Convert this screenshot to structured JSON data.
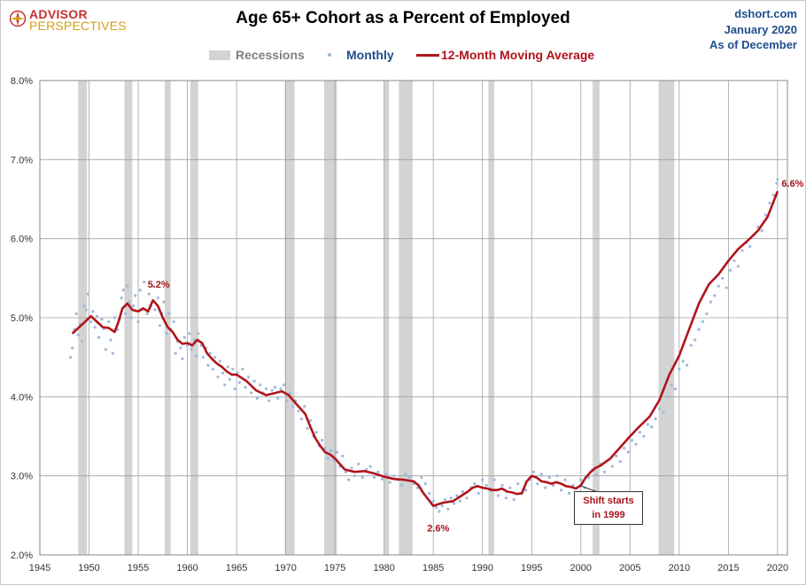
{
  "header": {
    "logo_line1": "ADVISOR",
    "logo_line2": "PERSPECTIVES",
    "title": "Age 65+ Cohort as a Percent of Employed",
    "source_line1": "dshort.com",
    "source_line2": "January 2020",
    "source_line3": "As of December"
  },
  "legend": {
    "recessions": "Recessions",
    "monthly": "Monthly",
    "moving_average": "12-Month Moving Average"
  },
  "colors": {
    "recession": "#d3d3d3",
    "monthly": "#9fb9dc",
    "moving_average": "#b0141c",
    "grid": "#a0a0a0",
    "annotation": "#a6141a",
    "legend_text": "#1f4e8c",
    "legend_recession_text": "#7f7f7f"
  },
  "chart_data": {
    "type": "line",
    "title": "Age 65+ Cohort as a Percent of Employed",
    "xlim": [
      1945,
      2021
    ],
    "ylim": [
      2.0,
      8.0
    ],
    "x_ticks": [
      1945,
      1950,
      1955,
      1960,
      1965,
      1970,
      1975,
      1980,
      1985,
      1990,
      1995,
      2000,
      2005,
      2010,
      2015,
      2020
    ],
    "y_ticks": [
      {
        "v": 2.0,
        "label": "2.0%"
      },
      {
        "v": 3.0,
        "label": "3.0%"
      },
      {
        "v": 4.0,
        "label": "4.0%"
      },
      {
        "v": 5.0,
        "label": "5.0%"
      },
      {
        "v": 6.0,
        "label": "6.0%"
      },
      {
        "v": 7.0,
        "label": "7.0%"
      },
      {
        "v": 8.0,
        "label": "8.0%"
      }
    ],
    "grid": true,
    "legend_position": "top",
    "recessions": [
      [
        1948.9,
        1949.8
      ],
      [
        1953.6,
        1954.4
      ],
      [
        1957.7,
        1958.3
      ],
      [
        1960.3,
        1961.1
      ],
      [
        1969.9,
        1970.9
      ],
      [
        1973.9,
        1975.2
      ],
      [
        1980.0,
        1980.5
      ],
      [
        1981.5,
        1982.9
      ],
      [
        1990.6,
        1991.2
      ],
      [
        2001.2,
        2001.9
      ],
      [
        2007.9,
        2009.5
      ]
    ],
    "series": [
      {
        "name": "12-Month Moving Average",
        "x": [
          1948.3,
          1949.0,
          1949.6,
          1950.2,
          1950.8,
          1951.4,
          1952.0,
          1952.6,
          1953.0,
          1953.4,
          1953.9,
          1954.4,
          1955.0,
          1955.5,
          1956.0,
          1956.5,
          1957.0,
          1957.5,
          1958.0,
          1958.5,
          1959.0,
          1959.5,
          1960.0,
          1960.5,
          1961.0,
          1961.5,
          1962.0,
          1962.5,
          1963.0,
          1963.5,
          1964.0,
          1964.5,
          1965.0,
          1966.0,
          1967.0,
          1968.0,
          1969.0,
          1969.6,
          1970.3,
          1971.0,
          1971.5,
          1972.0,
          1972.5,
          1973.0,
          1973.5,
          1974.0,
          1974.5,
          1975.0,
          1976.0,
          1977.0,
          1978.0,
          1979.0,
          1980.0,
          1981.0,
          1982.0,
          1983.0,
          1983.5,
          1984.0,
          1984.5,
          1985.0,
          1985.5,
          1986.0,
          1986.5,
          1987.0,
          1987.5,
          1988.0,
          1988.5,
          1989.0,
          1989.5,
          1990.0,
          1990.5,
          1991.0,
          1991.5,
          1992.0,
          1992.5,
          1993.0,
          1993.5,
          1994.0,
          1994.5,
          1995.0,
          1995.5,
          1996.0,
          1996.5,
          1997.0,
          1997.5,
          1998.0,
          1998.5,
          1999.0,
          1999.5,
          2000.0,
          2000.5,
          2001.0,
          2001.5,
          2002.0,
          2003.0,
          2004.0,
          2005.0,
          2006.0,
          2007.0,
          2008.0,
          2009.0,
          2010.0,
          2011.0,
          2012.0,
          2013.0,
          2014.0,
          2015.0,
          2016.0,
          2017.0,
          2018.0,
          2019.0,
          2020.0
        ],
        "values": [
          4.8,
          4.88,
          4.95,
          5.02,
          4.95,
          4.88,
          4.87,
          4.82,
          4.95,
          5.12,
          5.18,
          5.1,
          5.08,
          5.12,
          5.08,
          5.22,
          5.15,
          5.0,
          4.88,
          4.82,
          4.72,
          4.67,
          4.68,
          4.65,
          4.72,
          4.68,
          4.55,
          4.48,
          4.42,
          4.38,
          4.32,
          4.28,
          4.28,
          4.2,
          4.08,
          4.02,
          4.05,
          4.07,
          4.02,
          3.92,
          3.85,
          3.78,
          3.62,
          3.48,
          3.38,
          3.3,
          3.27,
          3.22,
          3.08,
          3.05,
          3.06,
          3.03,
          2.99,
          2.96,
          2.95,
          2.93,
          2.88,
          2.78,
          2.7,
          2.62,
          2.64,
          2.66,
          2.67,
          2.68,
          2.72,
          2.76,
          2.8,
          2.85,
          2.87,
          2.85,
          2.84,
          2.82,
          2.82,
          2.84,
          2.8,
          2.79,
          2.77,
          2.78,
          2.93,
          3.0,
          2.98,
          2.93,
          2.92,
          2.9,
          2.92,
          2.9,
          2.87,
          2.86,
          2.84,
          2.88,
          2.98,
          3.05,
          3.1,
          3.13,
          3.22,
          3.36,
          3.5,
          3.63,
          3.75,
          3.96,
          4.28,
          4.52,
          4.85,
          5.18,
          5.42,
          5.55,
          5.72,
          5.87,
          5.98,
          6.1,
          6.28,
          6.6
        ]
      },
      {
        "name": "Monthly",
        "x": [
          1948.1,
          1948.3,
          1948.5,
          1948.7,
          1948.9,
          1949.1,
          1949.3,
          1949.5,
          1949.7,
          1949.9,
          1950.2,
          1950.4,
          1950.6,
          1950.8,
          1951.0,
          1951.3,
          1951.5,
          1951.7,
          1952.0,
          1952.2,
          1952.4,
          1952.6,
          1952.9,
          1953.1,
          1953.3,
          1953.5,
          1953.7,
          1953.9,
          1954.1,
          1954.3,
          1954.5,
          1954.7,
          1955.0,
          1955.2,
          1955.4,
          1955.6,
          1955.9,
          1956.1,
          1956.3,
          1956.5,
          1956.7,
          1957.0,
          1957.2,
          1957.4,
          1957.6,
          1957.9,
          1958.1,
          1958.3,
          1958.6,
          1958.8,
          1959.0,
          1959.3,
          1959.5,
          1959.7,
          1960.0,
          1960.2,
          1960.4,
          1960.7,
          1960.9,
          1961.1,
          1961.4,
          1961.6,
          1961.9,
          1962.1,
          1962.3,
          1962.6,
          1962.8,
          1963.1,
          1963.3,
          1963.6,
          1963.8,
          1964.1,
          1964.3,
          1964.6,
          1964.8,
          1965.1,
          1965.3,
          1965.6,
          1965.9,
          1966.2,
          1966.5,
          1966.8,
          1967.1,
          1967.4,
          1967.7,
          1968.0,
          1968.3,
          1968.6,
          1968.9,
          1969.2,
          1969.5,
          1969.8,
          1970.1,
          1970.4,
          1970.7,
          1971.0,
          1971.3,
          1971.6,
          1971.9,
          1972.2,
          1972.5,
          1972.8,
          1973.1,
          1973.4,
          1973.7,
          1974.0,
          1974.3,
          1974.6,
          1974.9,
          1975.2,
          1975.5,
          1975.8,
          1976.1,
          1976.4,
          1976.7,
          1977.0,
          1977.4,
          1977.8,
          1978.2,
          1978.6,
          1979.0,
          1979.4,
          1979.8,
          1980.2,
          1980.6,
          1981.0,
          1981.4,
          1981.8,
          1982.2,
          1982.6,
          1983.0,
          1983.4,
          1983.8,
          1984.2,
          1984.6,
          1985.0,
          1985.3,
          1985.6,
          1985.9,
          1986.2,
          1986.5,
          1986.8,
          1987.1,
          1987.4,
          1987.7,
          1988.0,
          1988.4,
          1988.8,
          1989.2,
          1989.6,
          1990.0,
          1990.4,
          1990.8,
          1991.2,
          1991.6,
          1992.0,
          1992.4,
          1992.8,
          1993.2,
          1993.6,
          1994.0,
          1994.4,
          1994.8,
          1995.2,
          1995.6,
          1996.0,
          1996.4,
          1996.8,
          1997.2,
          1997.6,
          1998.0,
          1998.4,
          1998.8,
          1999.2,
          1999.6,
          2000.0,
          2000.4,
          2000.8,
          2001.2,
          2001.6,
          2002.0,
          2002.4,
          2002.8,
          2003.2,
          2003.6,
          2004.0,
          2004.4,
          2004.8,
          2005.2,
          2005.6,
          2006.0,
          2006.4,
          2006.8,
          2007.2,
          2007.6,
          2008.0,
          2008.4,
          2008.8,
          2009.2,
          2009.6,
          2010.0,
          2010.4,
          2010.8,
          2011.2,
          2011.6,
          2012.0,
          2012.4,
          2012.8,
          2013.2,
          2013.6,
          2014.0,
          2014.4,
          2014.8,
          2015.2,
          2015.6,
          2016.0,
          2016.4,
          2016.8,
          2017.2,
          2017.6,
          2018.0,
          2018.4,
          2018.8,
          2019.2,
          2019.6,
          2019.9,
          2020.0
        ],
        "values": [
          4.5,
          4.62,
          4.85,
          5.05,
          4.78,
          4.92,
          4.7,
          5.15,
          5.1,
          5.3,
          4.95,
          5.08,
          4.88,
          5.02,
          4.75,
          4.98,
          4.86,
          4.6,
          4.95,
          4.72,
          4.55,
          5.0,
          4.85,
          4.98,
          5.25,
          5.35,
          5.05,
          5.4,
          5.2,
          5.0,
          5.15,
          5.28,
          4.95,
          5.35,
          5.1,
          5.45,
          5.05,
          5.3,
          5.15,
          5.4,
          5.1,
          5.25,
          4.9,
          5.05,
          5.2,
          4.8,
          5.05,
          4.85,
          4.95,
          4.55,
          4.7,
          4.62,
          4.48,
          4.75,
          4.65,
          4.8,
          4.6,
          4.72,
          4.52,
          4.8,
          4.65,
          4.5,
          4.62,
          4.4,
          4.55,
          4.35,
          4.5,
          4.25,
          4.45,
          4.3,
          4.15,
          4.38,
          4.22,
          4.35,
          4.1,
          4.3,
          4.18,
          4.35,
          4.12,
          4.25,
          4.05,
          4.2,
          3.98,
          4.15,
          4.05,
          4.1,
          3.95,
          4.08,
          4.12,
          3.98,
          4.1,
          4.15,
          3.95,
          4.05,
          3.88,
          3.95,
          3.82,
          3.72,
          3.88,
          3.6,
          3.7,
          3.5,
          3.55,
          3.38,
          3.45,
          3.35,
          3.22,
          3.32,
          3.2,
          3.3,
          3.12,
          3.25,
          3.05,
          2.95,
          3.1,
          3.0,
          3.15,
          2.98,
          3.08,
          3.12,
          2.98,
          3.05,
          2.96,
          3.02,
          2.92,
          3.0,
          2.95,
          2.88,
          3.02,
          2.98,
          2.9,
          2.85,
          2.98,
          2.9,
          2.78,
          2.68,
          2.6,
          2.55,
          2.62,
          2.7,
          2.58,
          2.72,
          2.65,
          2.75,
          2.68,
          2.8,
          2.72,
          2.85,
          2.9,
          2.78,
          2.95,
          2.88,
          2.82,
          2.95,
          2.75,
          2.88,
          2.72,
          2.85,
          2.7,
          2.9,
          2.78,
          2.82,
          2.95,
          3.05,
          2.9,
          3.02,
          2.85,
          2.98,
          2.88,
          3.0,
          2.82,
          2.95,
          2.78,
          2.88,
          2.75,
          2.95,
          2.85,
          2.98,
          3.08,
          3.02,
          3.15,
          3.05,
          3.2,
          3.12,
          3.25,
          3.18,
          3.35,
          3.3,
          3.45,
          3.4,
          3.55,
          3.5,
          3.65,
          3.62,
          3.72,
          3.85,
          3.8,
          4.0,
          4.15,
          4.1,
          4.35,
          4.45,
          4.4,
          4.65,
          4.72,
          4.85,
          4.95,
          5.05,
          5.2,
          5.28,
          5.4,
          5.5,
          5.38,
          5.6,
          5.72,
          5.65,
          5.85,
          5.95,
          5.9,
          6.05,
          6.15,
          6.1,
          6.3,
          6.45,
          6.55,
          6.7,
          6.75
        ]
      }
    ],
    "annotations": [
      {
        "x": 1956.0,
        "y": 5.2,
        "text": "5.2%"
      },
      {
        "x": 1985.5,
        "y": 2.6,
        "text": "2.6%"
      },
      {
        "x": 2020.0,
        "y": 6.6,
        "text": "6.6%"
      }
    ],
    "callout": {
      "x": 1999.9,
      "y": 2.9,
      "line1": "Shift starts",
      "line2": "in 1999"
    }
  }
}
